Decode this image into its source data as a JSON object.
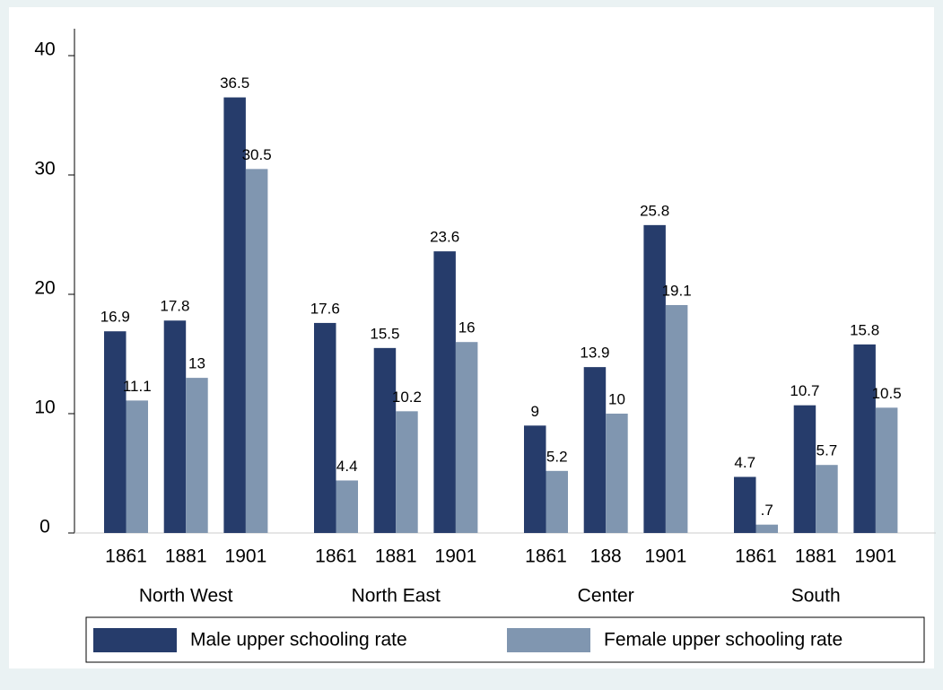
{
  "chart_data": {
    "type": "bar",
    "groups": [
      "North West",
      "North East",
      "Center",
      "South"
    ],
    "categories": [
      "1861",
      "1881",
      "1901",
      "1861",
      "1881",
      "1901",
      "1861",
      "188",
      "1901",
      "1861",
      "1881",
      "1901"
    ],
    "series": [
      {
        "name": "Male upper schooling rate",
        "color": "#263c6b",
        "values": [
          16.9,
          17.8,
          36.5,
          17.6,
          15.5,
          23.6,
          9,
          13.9,
          25.8,
          4.7,
          10.7,
          15.8
        ]
      },
      {
        "name": "Female upper schooling rate",
        "color": "#8096b0",
        "values": [
          11.1,
          13,
          30.5,
          4.4,
          10.2,
          16,
          5.2,
          10,
          19.1,
          0.7,
          5.7,
          10.5
        ],
        "value_labels": [
          "11.1",
          "13",
          "30.5",
          "4.4",
          "10.2",
          "16",
          "5.2",
          "10",
          "19.1",
          ".7",
          "5.7",
          "10.5"
        ]
      }
    ],
    "ylim": [
      0,
      40
    ],
    "yticks": [
      0,
      10,
      20,
      30,
      40
    ],
    "grid": false,
    "legend": "bottom"
  }
}
